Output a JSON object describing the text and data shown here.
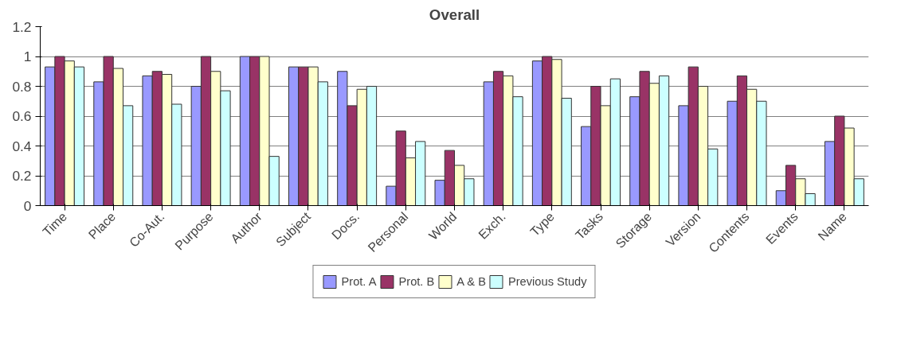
{
  "chart_data": {
    "type": "bar",
    "title": "Overall",
    "categories": [
      "Time",
      "Place",
      "Co-Aut.",
      "Purpose",
      "Author",
      "Subject",
      "Docs.",
      "Personal",
      "World",
      "Exch.",
      "Type",
      "Tasks",
      "Storage",
      "Version",
      "Contents",
      "Events",
      "Name"
    ],
    "series": [
      {
        "name": "Prot. A",
        "color": "#9999ff",
        "values": [
          0.93,
          0.83,
          0.87,
          0.8,
          1,
          0.93,
          0.9,
          0.13,
          0.17,
          0.83,
          0.97,
          0.53,
          0.73,
          0.67,
          0.7,
          0.1,
          0.43
        ]
      },
      {
        "name": "Prot. B",
        "color": "#993366",
        "values": [
          1,
          1,
          0.9,
          1,
          1,
          0.93,
          0.67,
          0.5,
          0.37,
          0.9,
          1,
          0.8,
          0.9,
          0.93,
          0.87,
          0.27,
          0.6
        ]
      },
      {
        "name": "A & B",
        "color": "#ffffcc",
        "values": [
          0.97,
          0.92,
          0.88,
          0.9,
          1,
          0.93,
          0.78,
          0.32,
          0.27,
          0.87,
          0.98,
          0.67,
          0.82,
          0.8,
          0.78,
          0.18,
          0.52
        ]
      },
      {
        "name": "Previous Study",
        "color": "#ccffff",
        "values": [
          0.93,
          0.67,
          0.68,
          0.77,
          0.33,
          0.83,
          0.8,
          0.43,
          0.18,
          0.73,
          0.72,
          0.85,
          0.87,
          0.38,
          0.7,
          0.08,
          0.18
        ]
      }
    ],
    "ylim": [
      0,
      1.2
    ],
    "yticks": [
      0,
      0.2,
      0.4,
      0.6,
      0.8,
      1,
      1.2
    ],
    "grid": "y",
    "legend": "bottom"
  }
}
